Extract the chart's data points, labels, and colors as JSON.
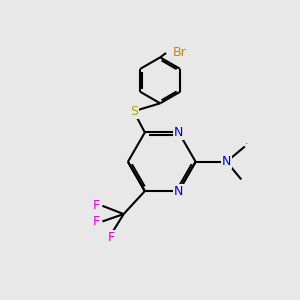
{
  "bg_color": "#e8e8e8",
  "bond_color": "#000000",
  "bond_width": 1.5,
  "atom_colors": {
    "N": "#0000cc",
    "S": "#aaaa00",
    "F": "#dd00dd",
    "Br": "#cc8800",
    "C": "#000000"
  },
  "font_size": 9
}
